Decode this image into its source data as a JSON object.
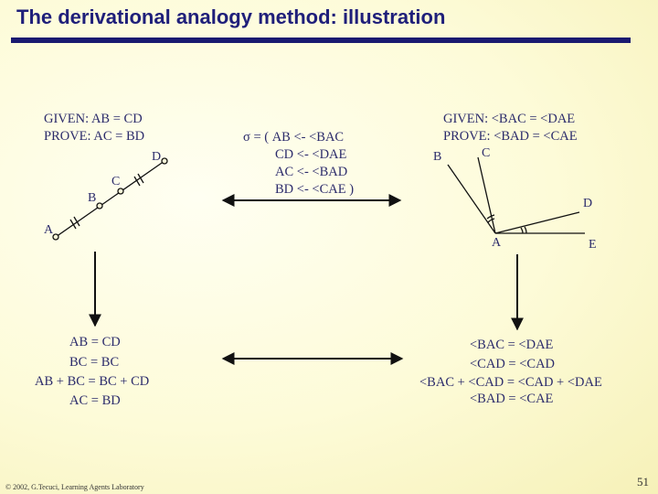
{
  "title": "The derivational analogy method: illustration",
  "left_problem": {
    "given": "GIVEN: AB = CD",
    "prove": "PROVE: AC = BD",
    "points": [
      "A",
      "B",
      "C",
      "D"
    ]
  },
  "mapping": {
    "lines": [
      "σ = ( AB <- <BAC",
      "CD <- <DAE",
      "AC <- <BAD",
      "BD <- <CAE )"
    ]
  },
  "right_problem": {
    "given": "GIVEN: <BAC = <DAE",
    "prove": "PROVE: <BAD = <CAE",
    "points": [
      "B",
      "C",
      "D",
      "A",
      "E"
    ]
  },
  "left_derivation": {
    "lines": [
      "AB = CD",
      "BC = BC",
      "AB + BC = BC + CD",
      "AC = BD"
    ]
  },
  "right_derivation": {
    "lines": [
      "<BAC = <DAE",
      "<CAD = <CAD",
      "<BAC + <CAD = <CAD + <DAE",
      "<BAD = <CAE"
    ]
  },
  "footer": "© 2002, G.Tecuci, Learning Agents Laboratory",
  "page_number": "51"
}
